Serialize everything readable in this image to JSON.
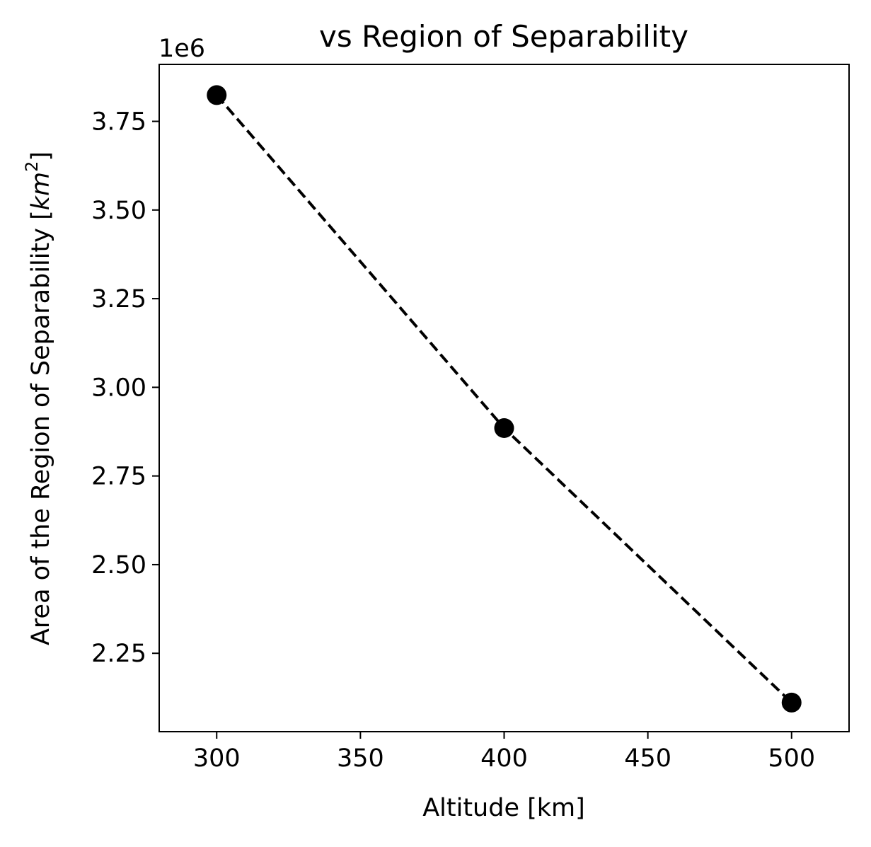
{
  "chart_data": {
    "type": "line",
    "title": "vs Region of Separability",
    "xlabel": "Altitude [km]",
    "ylabel": {
      "prefix": "Area of the Region of Separability [",
      "unit_base": "km",
      "unit_exponent": "2",
      "suffix": "]"
    },
    "y_offset_label": "1e6",
    "xlim": [
      280,
      520
    ],
    "ylim": [
      2.029,
      3.9106
    ],
    "y_scale_factor": 1000000,
    "x_ticks": [
      300,
      350,
      400,
      450,
      500
    ],
    "x_tick_labels": [
      "300",
      "350",
      "400",
      "450",
      "500"
    ],
    "y_ticks": [
      2.25,
      2.5,
      2.75,
      3.0,
      3.25,
      3.5,
      3.75
    ],
    "y_tick_labels": [
      "2.25",
      "2.50",
      "2.75",
      "3.00",
      "3.25",
      "3.50",
      "3.75"
    ],
    "grid": false,
    "legend": "none",
    "series": [
      {
        "x": [
          300,
          400,
          500
        ],
        "y": [
          3.824,
          2.885,
          2.111
        ],
        "color": "#000000",
        "line_style": "dashed",
        "marker": "circle"
      }
    ]
  }
}
